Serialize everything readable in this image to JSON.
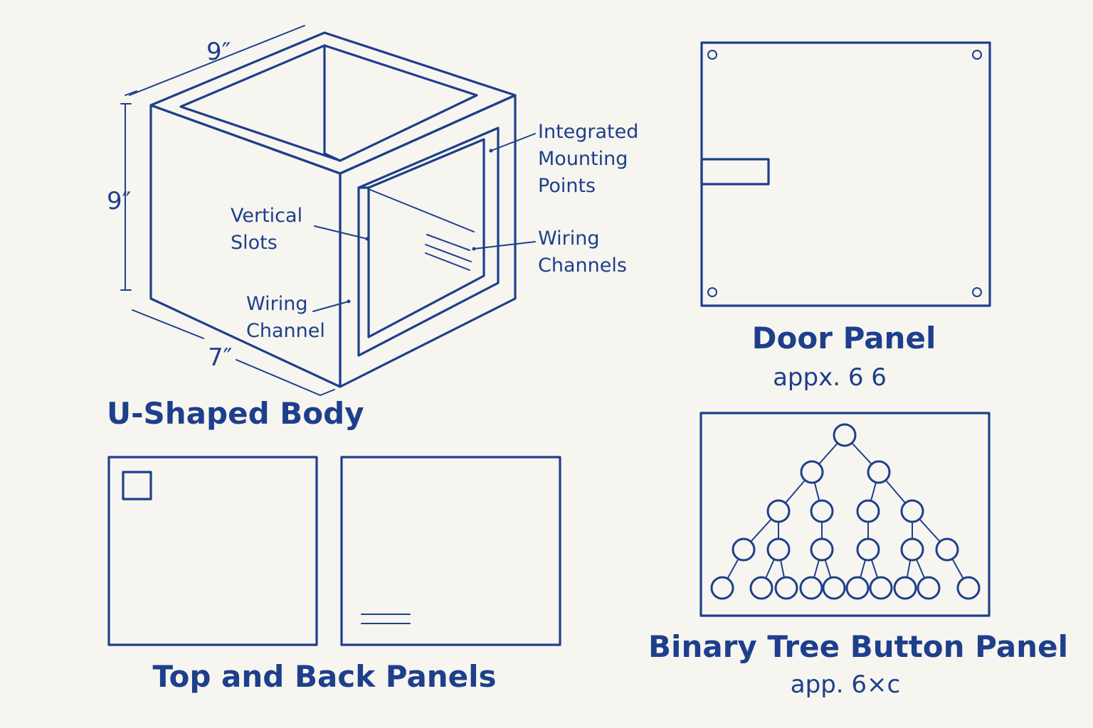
{
  "body": {
    "title": "U-Shaped Body",
    "dim_width": "9″",
    "dim_height": "9″",
    "dim_depth": "7″",
    "callouts": {
      "vertical_slots": [
        "Vertical",
        "Slots"
      ],
      "wiring_channel": [
        "Wiring",
        "Channel"
      ],
      "mounting_points": [
        "Integrated",
        "Mounting",
        "Points"
      ],
      "wiring_channels": [
        "Wiring",
        "Channels"
      ]
    }
  },
  "door_panel": {
    "title": "Door Panel",
    "subtitle": "appx. 6 6"
  },
  "top_back_panels": {
    "title": "Top and Back Panels"
  },
  "button_panel": {
    "title": "Binary Tree Button Panel",
    "subtitle": "app. 6×c"
  },
  "colors": {
    "ink": "#1d3f8c",
    "paper": "#f7f5ef"
  }
}
